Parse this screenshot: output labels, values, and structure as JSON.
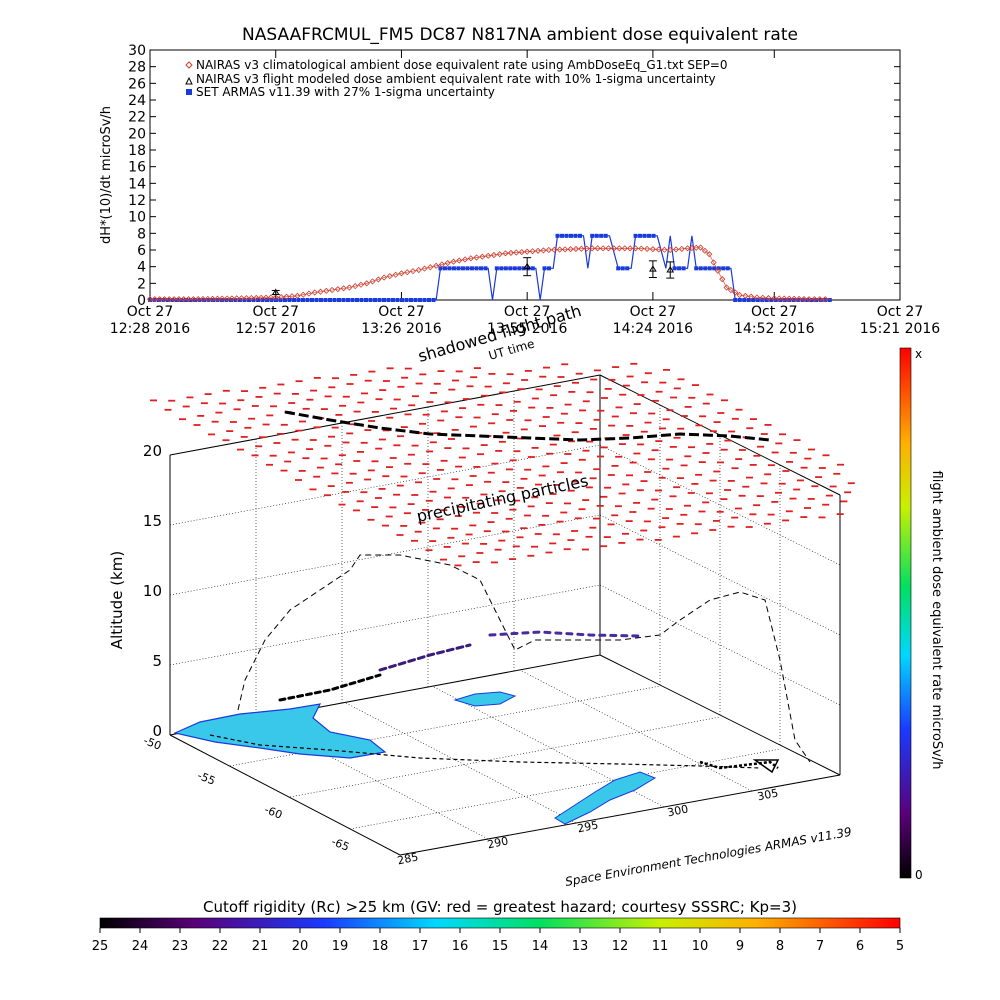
{
  "colors": {
    "climatological": "#d03a2a",
    "armas": "#1a3adc",
    "precip": "#e02020",
    "ground_track": "#000000"
  },
  "chart_data": [
    {
      "type": "line",
      "title": "NASAAFRCMUL_FM5 DC87 N817NA ambient dose equivalent rate",
      "ylabel": "dH*(10)/dt microSv/h",
      "xlabel": "",
      "ylim": [
        0,
        30
      ],
      "yticks": [
        "0",
        "2",
        "4",
        "6",
        "8",
        "10",
        "12",
        "14",
        "16",
        "18",
        "20",
        "22",
        "24",
        "26",
        "28",
        "30"
      ],
      "xlim": [
        "12:28",
        "15:21"
      ],
      "xtick_labels": [
        {
          "t": "12:28",
          "line1": "Oct 27",
          "line2": "12:28 2016"
        },
        {
          "t": "12:57",
          "line1": "Oct 27",
          "line2": "12:57 2016"
        },
        {
          "t": "13:26",
          "line1": "Oct 27",
          "line2": "13:26 2016"
        },
        {
          "t": "13:55",
          "line1": "Oct 27",
          "line2": "13:55 2016"
        },
        {
          "t": "14:24",
          "line1": "Oct 27",
          "line2": "14:24 2016"
        },
        {
          "t": "14:52",
          "line1": "Oct 27",
          "line2": "14:52 2016"
        },
        {
          "t": "15:21",
          "line1": "Oct 27",
          "line2": "15:21 2016"
        }
      ],
      "legend_position": "top-left",
      "series": [
        {
          "name": "NAIRAS v3 climatological ambient dose equivalent rate using AmbDoseEq_G1.txt SEP=0",
          "marker": "diamond",
          "points": [
            [
              "12:28",
              0.1
            ],
            [
              "12:38",
              0.1
            ],
            [
              "12:48",
              0.2
            ],
            [
              "12:57",
              0.3
            ],
            [
              "13:02",
              0.5
            ],
            [
              "13:06",
              0.9
            ],
            [
              "13:10",
              1.2
            ],
            [
              "13:14",
              1.5
            ],
            [
              "13:18",
              2.0
            ],
            [
              "13:22",
              2.7
            ],
            [
              "13:26",
              3.2
            ],
            [
              "13:30",
              3.6
            ],
            [
              "13:34",
              4.1
            ],
            [
              "13:38",
              4.6
            ],
            [
              "13:42",
              5.0
            ],
            [
              "13:46",
              5.3
            ],
            [
              "13:50",
              5.6
            ],
            [
              "13:55",
              5.8
            ],
            [
              "14:00",
              6.0
            ],
            [
              "14:05",
              6.1
            ],
            [
              "14:10",
              6.2
            ],
            [
              "14:15",
              6.2
            ],
            [
              "14:20",
              6.2
            ],
            [
              "14:24",
              6.1
            ],
            [
              "14:28",
              6.0
            ],
            [
              "14:32",
              6.2
            ],
            [
              "14:35",
              6.3
            ],
            [
              "14:37",
              5.5
            ],
            [
              "14:39",
              3.5
            ],
            [
              "14:41",
              1.5
            ],
            [
              "14:44",
              0.6
            ],
            [
              "14:48",
              0.3
            ],
            [
              "14:52",
              0.2
            ],
            [
              "15:00",
              0.1
            ],
            [
              "15:05",
              0.1
            ]
          ]
        },
        {
          "name": "NAIRAS v3 flight modeled dose ambient equivalent rate with 10% 1-sigma uncertainty",
          "marker": "triangle",
          "points": [
            [
              "12:57",
              0.9
            ],
            [
              "13:55",
              4.0
            ],
            [
              "14:24",
              3.7
            ],
            [
              "14:28",
              3.6
            ]
          ]
        },
        {
          "name": "SET ARMAS v11.39 with 27% 1-sigma uncertainty",
          "marker": "square",
          "points": [
            [
              "12:28",
              0
            ],
            [
              "13:34",
              0
            ],
            [
              "13:35",
              3.8
            ],
            [
              "13:46",
              3.8
            ],
            [
              "13:47",
              0
            ],
            [
              "13:48",
              3.8
            ],
            [
              "13:57",
              3.8
            ],
            [
              "13:58",
              0
            ],
            [
              "13:59",
              3.8
            ],
            [
              "14:01",
              3.8
            ],
            [
              "14:02",
              7.7
            ],
            [
              "14:08",
              7.7
            ],
            [
              "14:09",
              3.8
            ],
            [
              "14:10",
              7.7
            ],
            [
              "14:14",
              7.7
            ],
            [
              "14:16",
              3.8
            ],
            [
              "14:19",
              3.8
            ],
            [
              "14:20",
              7.7
            ],
            [
              "14:25",
              7.7
            ],
            [
              "14:27",
              3.8
            ],
            [
              "14:28",
              7.7
            ],
            [
              "14:29",
              3.8
            ],
            [
              "14:32",
              3.8
            ],
            [
              "14:33",
              7.7
            ],
            [
              "14:34",
              3.8
            ],
            [
              "14:42",
              3.8
            ],
            [
              "14:43",
              0
            ],
            [
              "15:05",
              0
            ]
          ]
        }
      ]
    },
    {
      "type": "scatter",
      "title": "",
      "zlabel": "Altitude (km)",
      "zlim": [
        0,
        20
      ],
      "zticks": [
        "0",
        "5",
        "10",
        "15",
        "20"
      ],
      "lat_ticks": [
        "-50",
        "-55",
        "-60",
        "-65"
      ],
      "lon_ticks": [
        "285",
        "290",
        "295",
        "300",
        "305"
      ],
      "annotations": {
        "shadowed": "shadowed flight path",
        "ut": "UT time",
        "precip": "precipitating particles",
        "credit": "Space Environment Technologies ARMAS v11.39"
      },
      "colorbar": {
        "label": "flight ambient dose equivalent rate microSv/h",
        "max_label": "x",
        "min_label": "0"
      }
    },
    {
      "type": "heatmap",
      "title": "Cutoff rigidity (Rc) >25 km (GV: red = greatest hazard; courtesy SSSRC; Kp=3)",
      "tick_labels": [
        "25",
        "24",
        "23",
        "22",
        "21",
        "20",
        "19",
        "18",
        "17",
        "16",
        "15",
        "14",
        "13",
        "12",
        "11",
        "10",
        "9",
        "8",
        "7",
        "6",
        "5"
      ]
    }
  ]
}
